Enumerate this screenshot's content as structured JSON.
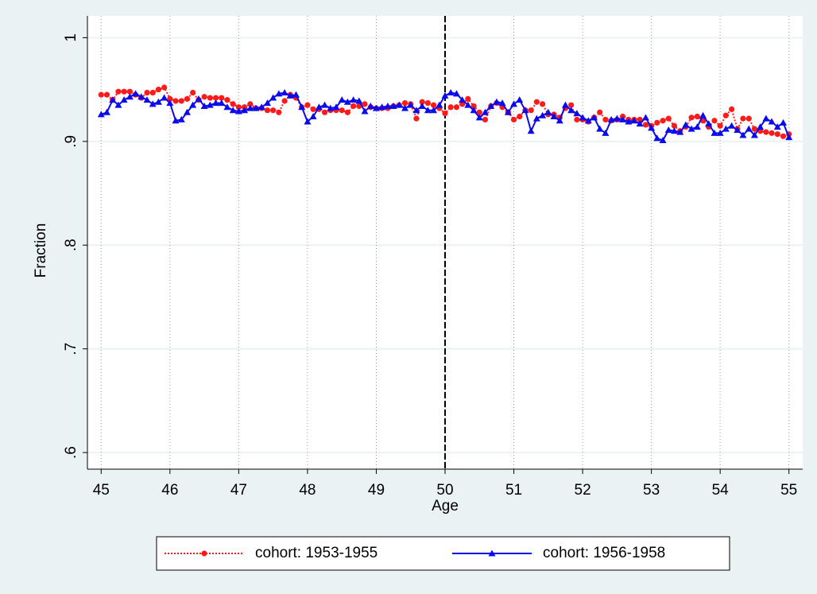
{
  "chart_data": {
    "type": "line",
    "x_label": "Age",
    "y_label": "Fraction",
    "x": [
      45,
      45.083,
      45.167,
      45.25,
      45.333,
      45.417,
      45.5,
      45.583,
      45.667,
      45.75,
      45.833,
      45.917,
      46,
      46.083,
      46.167,
      46.25,
      46.333,
      46.417,
      46.5,
      46.583,
      46.667,
      46.75,
      46.833,
      46.917,
      47,
      47.083,
      47.167,
      47.25,
      47.333,
      47.417,
      47.5,
      47.583,
      47.667,
      47.75,
      47.833,
      47.917,
      48,
      48.083,
      48.167,
      48.25,
      48.333,
      48.417,
      48.5,
      48.583,
      48.667,
      48.75,
      48.833,
      48.917,
      49,
      49.083,
      49.167,
      49.25,
      49.333,
      49.417,
      49.5,
      49.583,
      49.667,
      49.75,
      49.833,
      49.917,
      50,
      50.083,
      50.167,
      50.25,
      50.333,
      50.417,
      50.5,
      50.583,
      50.667,
      50.75,
      50.833,
      50.917,
      51,
      51.083,
      51.167,
      51.25,
      51.333,
      51.417,
      51.5,
      51.583,
      51.667,
      51.75,
      51.833,
      51.917,
      52,
      52.083,
      52.167,
      52.25,
      52.333,
      52.417,
      52.5,
      52.583,
      52.667,
      52.75,
      52.833,
      52.917,
      53,
      53.083,
      53.167,
      53.25,
      53.333,
      53.417,
      53.5,
      53.583,
      53.667,
      53.75,
      53.833,
      53.917,
      54,
      54.083,
      54.167,
      54.25,
      54.333,
      54.417,
      54.5,
      54.583,
      54.667,
      54.75,
      54.833,
      54.917,
      55
    ],
    "series": [
      {
        "name": "cohort: 1953-1955",
        "color": "#ff1a1a",
        "marker": "circle",
        "dash": "dotted",
        "values": [
          0.945,
          0.945,
          0.94,
          0.948,
          0.948,
          0.948,
          0.945,
          0.942,
          0.947,
          0.947,
          0.95,
          0.952,
          0.941,
          0.939,
          0.939,
          0.941,
          0.947,
          0.94,
          0.943,
          0.942,
          0.942,
          0.942,
          0.94,
          0.936,
          0.933,
          0.933,
          0.936,
          0.932,
          0.932,
          0.93,
          0.93,
          0.928,
          0.939,
          0.945,
          0.942,
          0.933,
          0.935,
          0.931,
          0.931,
          0.928,
          0.93,
          0.93,
          0.93,
          0.928,
          0.934,
          0.934,
          0.936,
          0.933,
          0.932,
          0.932,
          0.932,
          0.934,
          0.935,
          0.937,
          0.936,
          0.922,
          0.938,
          0.937,
          0.935,
          0.932,
          0.927,
          0.933,
          0.933,
          0.936,
          0.941,
          0.934,
          0.928,
          0.921,
          0.934,
          0.937,
          0.933,
          0.928,
          0.921,
          0.924,
          0.93,
          0.93,
          0.938,
          0.936,
          0.926,
          0.926,
          0.923,
          0.932,
          0.935,
          0.921,
          0.921,
          0.919,
          0.923,
          0.928,
          0.921,
          0.92,
          0.921,
          0.924,
          0.921,
          0.921,
          0.921,
          0.916,
          0.915,
          0.918,
          0.92,
          0.922,
          0.915,
          0.91,
          0.914,
          0.923,
          0.924,
          0.92,
          0.914,
          0.92,
          0.915,
          0.925,
          0.931,
          0.912,
          0.922,
          0.922,
          0.912,
          0.91,
          0.909,
          0.908,
          0.907,
          0.905,
          0.907
        ]
      },
      {
        "name": "cohort: 1956-1958",
        "color": "#0a0aee",
        "marker": "triangle",
        "dash": "solid",
        "values": [
          0.926,
          0.928,
          0.94,
          0.935,
          0.94,
          0.943,
          0.946,
          0.943,
          0.94,
          0.936,
          0.938,
          0.942,
          0.937,
          0.92,
          0.921,
          0.928,
          0.935,
          0.941,
          0.934,
          0.935,
          0.937,
          0.937,
          0.933,
          0.93,
          0.929,
          0.93,
          0.932,
          0.932,
          0.933,
          0.937,
          0.942,
          0.946,
          0.947,
          0.944,
          0.945,
          0.933,
          0.919,
          0.924,
          0.933,
          0.935,
          0.932,
          0.933,
          0.94,
          0.938,
          0.94,
          0.939,
          0.929,
          0.934,
          0.932,
          0.933,
          0.934,
          0.934,
          0.935,
          0.932,
          0.935,
          0.93,
          0.934,
          0.93,
          0.93,
          0.935,
          0.944,
          0.947,
          0.946,
          0.94,
          0.935,
          0.93,
          0.923,
          0.928,
          0.934,
          0.938,
          0.937,
          0.928,
          0.936,
          0.94,
          0.93,
          0.91,
          0.922,
          0.925,
          0.928,
          0.924,
          0.92,
          0.935,
          0.93,
          0.927,
          0.923,
          0.92,
          0.923,
          0.912,
          0.908,
          0.921,
          0.922,
          0.921,
          0.919,
          0.92,
          0.917,
          0.923,
          0.913,
          0.903,
          0.901,
          0.911,
          0.91,
          0.909,
          0.916,
          0.912,
          0.914,
          0.925,
          0.917,
          0.908,
          0.908,
          0.912,
          0.915,
          0.911,
          0.906,
          0.912,
          0.906,
          0.914,
          0.922,
          0.919,
          0.914,
          0.918,
          0.904
        ]
      }
    ],
    "xlim": [
      44.8,
      55.2
    ],
    "ylim": [
      0.584,
      1.021
    ],
    "xticks": [
      45,
      46,
      47,
      48,
      49,
      50,
      51,
      52,
      53,
      54,
      55
    ],
    "yticks": [
      {
        "value": 0.6,
        "label": ".6"
      },
      {
        "value": 0.7,
        "label": ".7"
      },
      {
        "value": 0.8,
        "label": ".8"
      },
      {
        "value": 0.9,
        "label": ".9"
      },
      1
    ],
    "xline": 50,
    "grid": true
  }
}
